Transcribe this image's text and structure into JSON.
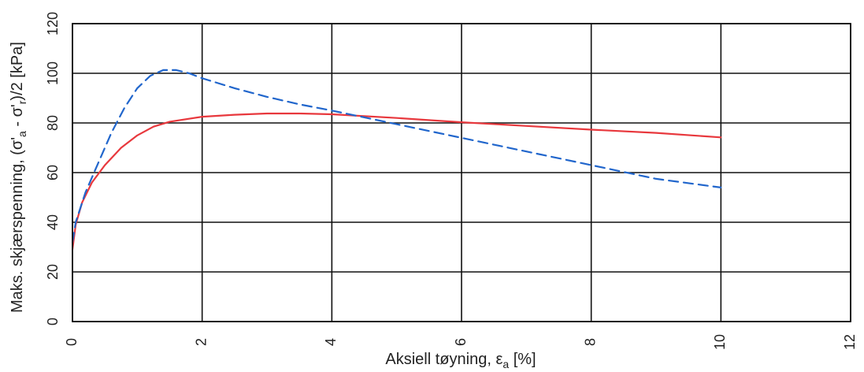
{
  "chart_data": {
    "type": "line",
    "title": "",
    "xlabel": "Aksiell tøyning, εa [%]",
    "xlabel_parts": {
      "main": "Aksiell tøyning, ε",
      "sub": "a",
      "tail": " [%]"
    },
    "ylabel": "Maks. skjærspenning, (σ'a - σ'r)/2  [kPa]",
    "ylabel_parts": {
      "main": "Maks. skjærspenning, (σ'",
      "sub1": "a",
      "mid": " - σ'",
      "sub2": "r",
      "tail": ")/2  [kPa]"
    },
    "xlim": [
      0,
      12
    ],
    "ylim": [
      0,
      120
    ],
    "x_ticks": [
      0,
      2,
      4,
      6,
      8,
      10,
      12
    ],
    "y_ticks": [
      0,
      20,
      40,
      60,
      80,
      100,
      120
    ],
    "grid": true,
    "legend": "none",
    "series": [
      {
        "style": "solid",
        "color": "#e8383d",
        "x": [
          0,
          0.05,
          0.15,
          0.3,
          0.5,
          0.75,
          1.0,
          1.25,
          1.5,
          2.0,
          2.5,
          3.0,
          3.5,
          4.0,
          5.0,
          6.0,
          7.0,
          8.0,
          9.0,
          10.0
        ],
        "y": [
          29,
          39,
          48,
          56,
          63,
          70,
          75,
          78.5,
          80.5,
          82.5,
          83.3,
          83.8,
          83.8,
          83.5,
          82,
          80.3,
          78.8,
          77.3,
          76,
          74.2
        ]
      },
      {
        "style": "dashed",
        "color": "#2166cc",
        "x": [
          0,
          0.05,
          0.2,
          0.4,
          0.6,
          0.8,
          1.0,
          1.2,
          1.4,
          1.6,
          1.8,
          2.0,
          2.5,
          3.0,
          3.5,
          4.0,
          5.0,
          6.0,
          7.0,
          8.0,
          9.0,
          10.0
        ],
        "y": [
          32,
          40,
          52,
          64,
          76,
          86,
          94,
          99,
          101.3,
          101.3,
          100,
          98,
          94,
          90.5,
          87.5,
          85,
          79.5,
          74,
          68.5,
          63,
          57.5,
          54
        ]
      }
    ]
  }
}
